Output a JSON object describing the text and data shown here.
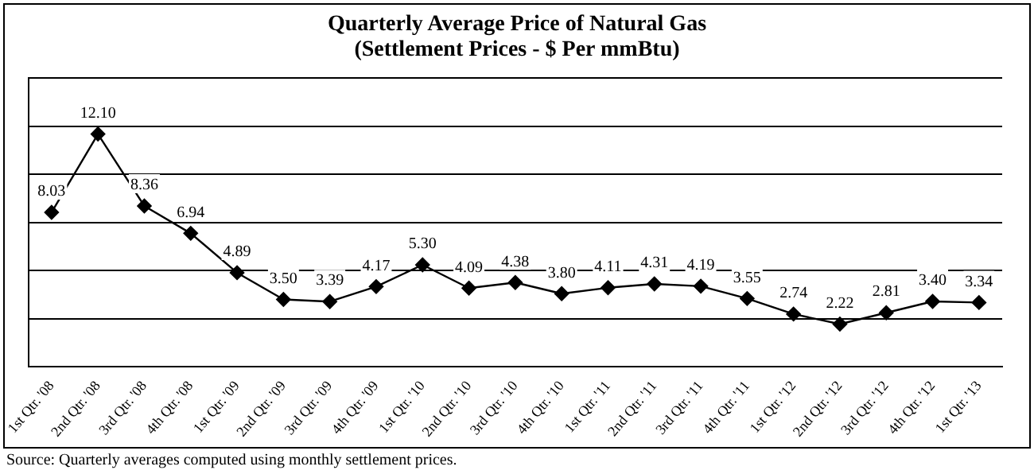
{
  "chart_data": {
    "type": "line",
    "title": "Quarterly  Average Price  of Natural Gas",
    "subtitle": "(Settlement Prices - $ Per mmBtu)",
    "categories": [
      "1st Qtr. '08",
      "2nd Qtr. '08",
      "3rd Qtr. '08",
      "4th Qtr. '08",
      "1st Qtr. '09",
      "2nd Qtr. '09",
      "3rd Qtr. '09",
      "4th Qtr. '09",
      "1st Qtr. '10",
      "2nd Qtr. '10",
      "3rd Qtr. '10",
      "4th Qtr. '10",
      "1st Qtr. '11",
      "2nd Qtr. '11",
      "3rd Qtr. '11",
      "4th Qtr. '11",
      "1st Qtr. '12",
      "2nd Qtr. '12",
      "3rd Qtr. '12",
      "4th Qtr. '12",
      "1st Qtr. '13"
    ],
    "series": [
      {
        "color": "#000000",
        "values": [
          8.03,
          12.1,
          8.36,
          6.94,
          4.89,
          3.5,
          3.39,
          4.17,
          5.3,
          4.09,
          4.38,
          3.8,
          4.11,
          4.31,
          4.19,
          3.55,
          2.74,
          2.22,
          2.81,
          3.4,
          3.34
        ],
        "value_labels": [
          "8.03",
          "12.10",
          "8.36",
          "6.94",
          "4.89",
          "3.50",
          "3.39",
          "4.17",
          "5.30",
          "4.09",
          "4.38",
          "3.80",
          "4.11",
          "4.31",
          "4.19",
          "3.55",
          "2.74",
          "2.22",
          "2.81",
          "3.40",
          "3.34"
        ]
      }
    ],
    "ylim": [
      0,
      15
    ],
    "yticks": [
      {
        "value": 0,
        "label": null
      },
      {
        "value": 2.5,
        "label": null
      },
      {
        "value": 5,
        "label": null
      },
      {
        "value": 7.5,
        "label": null
      },
      {
        "value": 10,
        "label": null
      },
      {
        "value": 12.5,
        "label": null
      },
      {
        "value": 15,
        "label": null
      }
    ],
    "tick_labels": "x",
    "grid": "y",
    "legend": false,
    "marker": "diamond",
    "line_style": "solid",
    "annotations": [
      "Source:  Quarterly averages computed using monthly settlement prices."
    ]
  }
}
